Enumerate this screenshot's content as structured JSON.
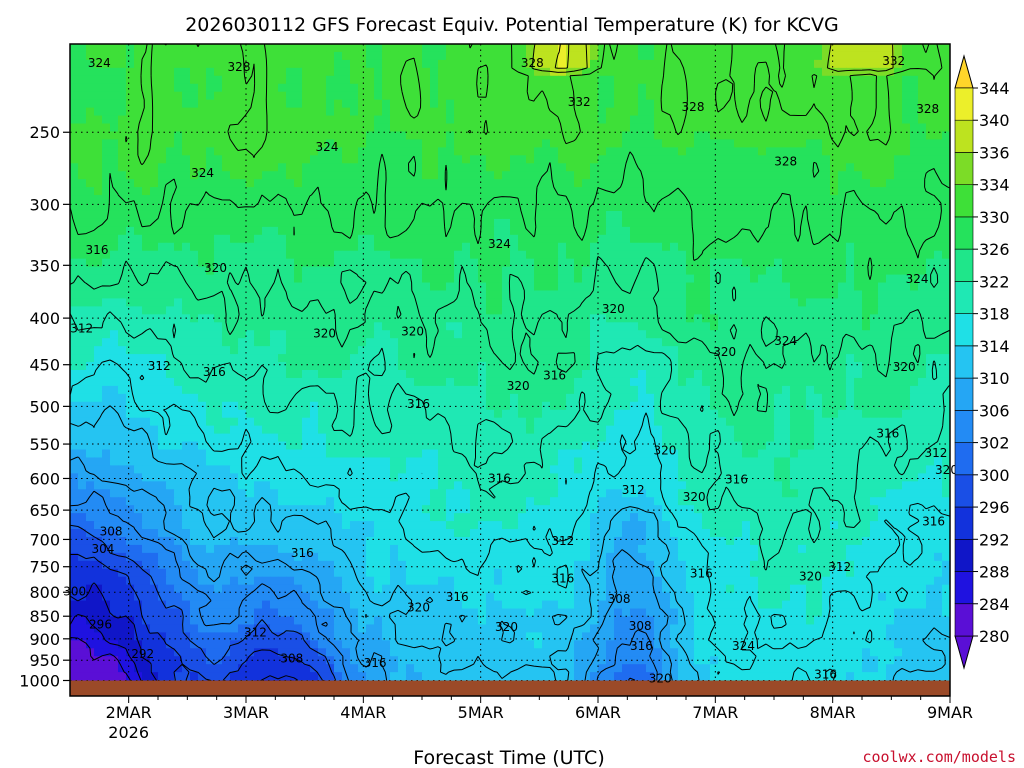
{
  "chart_data": {
    "type": "heatmap",
    "title": "2026030112 GFS Forecast Equiv. Potential Temperature (K) for KCVG",
    "xlabel": "Forecast Time (UTC)",
    "ylabel": "",
    "x_ticks": [
      {
        "label": "2MAR",
        "sublabel": "2026",
        "day": 1
      },
      {
        "label": "3MAR",
        "sublabel": "",
        "day": 2
      },
      {
        "label": "4MAR",
        "sublabel": "",
        "day": 3
      },
      {
        "label": "5MAR",
        "sublabel": "",
        "day": 4
      },
      {
        "label": "6MAR",
        "sublabel": "",
        "day": 5
      },
      {
        "label": "7MAR",
        "sublabel": "",
        "day": 6
      },
      {
        "label": "8MAR",
        "sublabel": "",
        "day": 7
      },
      {
        "label": "9MAR",
        "sublabel": "",
        "day": 8
      }
    ],
    "xlim": [
      0.5,
      8.0
    ],
    "y_ticks": [
      250,
      300,
      350,
      400,
      450,
      500,
      550,
      600,
      650,
      700,
      750,
      800,
      850,
      900,
      950,
      1000
    ],
    "ylim": [
      1000,
      200
    ],
    "y_scale": "log-pressure (hPa)",
    "ground_level_hPa": 1000,
    "colorbar": {
      "labels": [
        280,
        284,
        288,
        292,
        296,
        300,
        302,
        306,
        310,
        314,
        318,
        322,
        326,
        330,
        334,
        336,
        340,
        344
      ],
      "colors": [
        "#5a0fd6",
        "#1f12e0",
        "#1016c8",
        "#1232dc",
        "#1a4fe6",
        "#1f6cf0",
        "#238bf4",
        "#25a6f4",
        "#25c4f2",
        "#1fe0e6",
        "#1fe8b4",
        "#1fe68a",
        "#25e25c",
        "#3ee038",
        "#7cdc27",
        "#bde31f",
        "#ecef2a",
        "#ffd52a"
      ]
    },
    "contour_labels": [
      {
        "text": "324",
        "t": 0.75,
        "p": 212
      },
      {
        "text": "328",
        "t": 1.94,
        "p": 214
      },
      {
        "text": "328",
        "t": 4.44,
        "p": 212
      },
      {
        "text": "332",
        "t": 4.84,
        "p": 234
      },
      {
        "text": "328",
        "t": 5.81,
        "p": 237
      },
      {
        "text": "332",
        "t": 7.52,
        "p": 211
      },
      {
        "text": "328",
        "t": 7.81,
        "p": 238
      },
      {
        "text": "324",
        "t": 2.69,
        "p": 262
      },
      {
        "text": "324",
        "t": 1.63,
        "p": 280
      },
      {
        "text": "328",
        "t": 6.6,
        "p": 272
      },
      {
        "text": "324",
        "t": 4.16,
        "p": 335
      },
      {
        "text": "316",
        "t": 0.73,
        "p": 340
      },
      {
        "text": "320",
        "t": 1.74,
        "p": 356
      },
      {
        "text": "324",
        "t": 7.72,
        "p": 366
      },
      {
        "text": "320",
        "t": 5.13,
        "p": 395
      },
      {
        "text": "320",
        "t": 2.67,
        "p": 420
      },
      {
        "text": "320",
        "t": 3.42,
        "p": 418
      },
      {
        "text": "312",
        "t": 0.6,
        "p": 415
      },
      {
        "text": "324",
        "t": 6.6,
        "p": 428
      },
      {
        "text": "320",
        "t": 6.08,
        "p": 440
      },
      {
        "text": "312",
        "t": 1.26,
        "p": 456
      },
      {
        "text": "316",
        "t": 1.73,
        "p": 463
      },
      {
        "text": "320",
        "t": 7.61,
        "p": 457
      },
      {
        "text": "320",
        "t": 4.32,
        "p": 480
      },
      {
        "text": "316",
        "t": 4.63,
        "p": 467
      },
      {
        "text": "316",
        "t": 3.47,
        "p": 502
      },
      {
        "text": "316",
        "t": 7.47,
        "p": 541
      },
      {
        "text": "320",
        "t": 5.57,
        "p": 565
      },
      {
        "text": "312",
        "t": 7.88,
        "p": 568
      },
      {
        "text": "320",
        "t": 7.97,
        "p": 593
      },
      {
        "text": "316",
        "t": 4.16,
        "p": 606
      },
      {
        "text": "316",
        "t": 6.18,
        "p": 608
      },
      {
        "text": "312",
        "t": 5.3,
        "p": 624
      },
      {
        "text": "320",
        "t": 5.82,
        "p": 635
      },
      {
        "text": "316",
        "t": 7.86,
        "p": 676
      },
      {
        "text": "308",
        "t": 0.85,
        "p": 693
      },
      {
        "text": "304",
        "t": 0.78,
        "p": 724
      },
      {
        "text": "312",
        "t": 4.7,
        "p": 710
      },
      {
        "text": "316",
        "t": 2.48,
        "p": 732
      },
      {
        "text": "312",
        "t": 7.06,
        "p": 758
      },
      {
        "text": "316",
        "t": 4.7,
        "p": 781
      },
      {
        "text": "316",
        "t": 5.88,
        "p": 771
      },
      {
        "text": "320",
        "t": 6.81,
        "p": 777
      },
      {
        "text": "300",
        "t": 0.54,
        "p": 807
      },
      {
        "text": "308",
        "t": 5.18,
        "p": 822
      },
      {
        "text": "316",
        "t": 3.8,
        "p": 818
      },
      {
        "text": "320",
        "t": 3.47,
        "p": 840
      },
      {
        "text": "296",
        "t": 0.76,
        "p": 877
      },
      {
        "text": "308",
        "t": 5.36,
        "p": 880
      },
      {
        "text": "320",
        "t": 4.22,
        "p": 882
      },
      {
        "text": "312",
        "t": 2.08,
        "p": 895
      },
      {
        "text": "324",
        "t": 6.24,
        "p": 926
      },
      {
        "text": "316",
        "t": 5.37,
        "p": 926
      },
      {
        "text": "292",
        "t": 1.12,
        "p": 945
      },
      {
        "text": "308",
        "t": 2.39,
        "p": 955
      },
      {
        "text": "316",
        "t": 3.1,
        "p": 967
      },
      {
        "text": "320",
        "t": 5.53,
        "p": 1005
      },
      {
        "text": "316",
        "t": 6.94,
        "p": 995
      }
    ]
  },
  "watermark": "coolwx.com/models"
}
